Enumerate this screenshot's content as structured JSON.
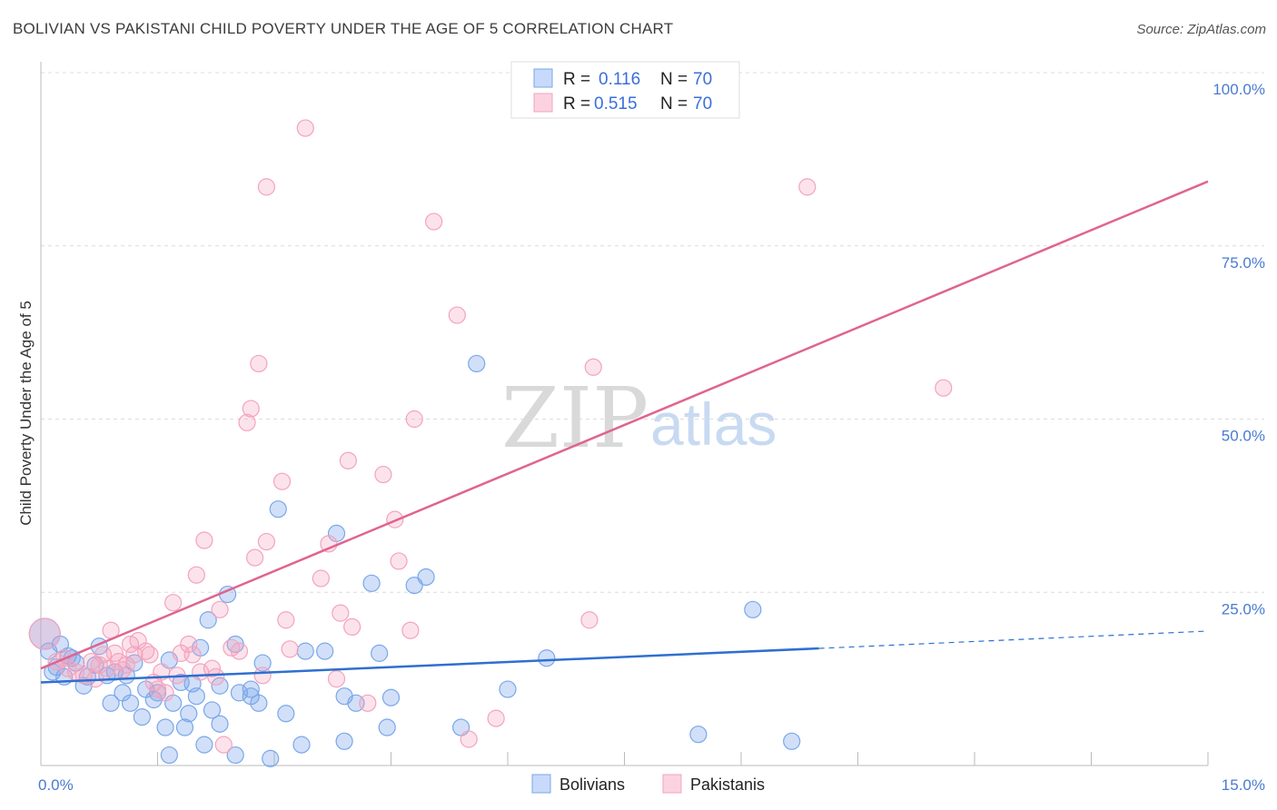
{
  "header": {
    "title": "BOLIVIAN VS PAKISTANI CHILD POVERTY UNDER THE AGE OF 5 CORRELATION CHART",
    "source": "Source: ZipAtlas.com"
  },
  "watermark": {
    "zip": "ZIP",
    "atlas": "atlas"
  },
  "legend": {
    "r_label": "R =",
    "n_label": "N =",
    "rows": [
      {
        "r": "0.116",
        "n": "70"
      },
      {
        "r": "0.515",
        "n": "70"
      }
    ]
  },
  "bottom_legend": [
    "Bolivians",
    "Pakistanis"
  ],
  "chart_data": {
    "type": "scatter",
    "title": "BOLIVIAN VS PAKISTANI CHILD POVERTY UNDER THE AGE OF 5 CORRELATION CHART",
    "xlabel": "",
    "ylabel": "Child Poverty Under the Age of 5",
    "xlim": [
      0,
      15
    ],
    "ylim": [
      0,
      100
    ],
    "x_tick_labels": [
      "0.0%",
      "15.0%"
    ],
    "y_tick_labels": [
      "25.0%",
      "50.0%",
      "75.0%",
      "100.0%"
    ],
    "y_ticks": [
      25,
      50,
      75,
      100
    ],
    "grid": true,
    "legend_position": "top-center",
    "colors": {
      "bolivians": "#7aa7ea",
      "pakistanis": "#f4a3bd",
      "blue_line": "#2f6fd0",
      "pink_line": "#e0648f"
    },
    "series": [
      {
        "name": "Bolivians",
        "r": 0.116,
        "n": 70,
        "trend": {
          "x": [
            0,
            10,
            15
          ],
          "y": [
            12.0,
            16.9,
            19.4
          ],
          "solid_until": 10
        },
        "points": [
          [
            0.1,
            16.5
          ],
          [
            0.15,
            13.5
          ],
          [
            0.2,
            14.2
          ],
          [
            0.25,
            17.5
          ],
          [
            0.3,
            12.8
          ],
          [
            0.35,
            15.8
          ],
          [
            0.45,
            14.8
          ],
          [
            0.55,
            11.5
          ],
          [
            0.6,
            12.8
          ],
          [
            0.75,
            17.2
          ],
          [
            0.85,
            13.0
          ],
          [
            0.9,
            9.0
          ],
          [
            0.95,
            13.5
          ],
          [
            1.05,
            10.5
          ],
          [
            1.1,
            13.0
          ],
          [
            1.15,
            9.0
          ],
          [
            1.2,
            14.8
          ],
          [
            1.3,
            7.0
          ],
          [
            1.35,
            11.0
          ],
          [
            1.45,
            9.5
          ],
          [
            1.5,
            10.5
          ],
          [
            1.6,
            5.5
          ],
          [
            1.65,
            15.2
          ],
          [
            1.7,
            9.0
          ],
          [
            1.65,
            1.5
          ],
          [
            1.8,
            12.0
          ],
          [
            1.85,
            5.5
          ],
          [
            1.9,
            7.5
          ],
          [
            1.95,
            11.8
          ],
          [
            2.0,
            10.0
          ],
          [
            2.05,
            17.0
          ],
          [
            2.1,
            3.0
          ],
          [
            2.15,
            21.0
          ],
          [
            2.2,
            8.0
          ],
          [
            2.3,
            11.5
          ],
          [
            2.3,
            6.0
          ],
          [
            2.4,
            24.7
          ],
          [
            2.5,
            17.5
          ],
          [
            2.5,
            1.5
          ],
          [
            2.55,
            10.5
          ],
          [
            2.7,
            11.0
          ],
          [
            2.7,
            10.0
          ],
          [
            2.8,
            9.0
          ],
          [
            2.85,
            14.8
          ],
          [
            2.95,
            1.0
          ],
          [
            3.05,
            37.0
          ],
          [
            3.15,
            7.5
          ],
          [
            3.35,
            3.0
          ],
          [
            3.4,
            16.5
          ],
          [
            3.65,
            16.5
          ],
          [
            3.8,
            33.5
          ],
          [
            3.9,
            10.0
          ],
          [
            3.9,
            3.5
          ],
          [
            4.05,
            9.0
          ],
          [
            4.25,
            26.3
          ],
          [
            4.35,
            16.2
          ],
          [
            4.45,
            5.5
          ],
          [
            4.5,
            9.8
          ],
          [
            4.8,
            26.0
          ],
          [
            4.95,
            27.2
          ],
          [
            5.4,
            5.5
          ],
          [
            5.6,
            58.0
          ],
          [
            6.0,
            11.0
          ],
          [
            6.5,
            15.5
          ],
          [
            8.45,
            4.5
          ],
          [
            9.15,
            22.5
          ],
          [
            9.65,
            3.5
          ],
          [
            0.05,
            19.0
          ],
          [
            0.4,
            15.5
          ],
          [
            0.7,
            14.5
          ]
        ]
      },
      {
        "name": "Pakistanis",
        "r": 0.515,
        "n": 70,
        "trend": {
          "x": [
            0,
            15
          ],
          "y": [
            14.0,
            84.3
          ]
        },
        "points": [
          [
            0.05,
            19.0
          ],
          [
            0.2,
            15.0
          ],
          [
            0.3,
            15.5
          ],
          [
            0.35,
            14.0
          ],
          [
            0.45,
            13.5
          ],
          [
            0.55,
            13.0
          ],
          [
            0.65,
            15.0
          ],
          [
            0.7,
            12.5
          ],
          [
            0.75,
            14.5
          ],
          [
            0.8,
            16.0
          ],
          [
            0.85,
            14.0
          ],
          [
            0.9,
            19.5
          ],
          [
            0.95,
            16.2
          ],
          [
            1.0,
            15.0
          ],
          [
            1.05,
            13.8
          ],
          [
            1.1,
            14.5
          ],
          [
            1.15,
            17.5
          ],
          [
            1.2,
            16.0
          ],
          [
            1.25,
            18.0
          ],
          [
            1.35,
            16.5
          ],
          [
            1.4,
            16.0
          ],
          [
            1.45,
            12.0
          ],
          [
            1.5,
            11.0
          ],
          [
            1.55,
            13.5
          ],
          [
            1.6,
            10.5
          ],
          [
            1.7,
            23.5
          ],
          [
            1.75,
            13.0
          ],
          [
            1.8,
            16.2
          ],
          [
            1.9,
            17.5
          ],
          [
            1.95,
            16.0
          ],
          [
            2.0,
            27.5
          ],
          [
            2.05,
            13.5
          ],
          [
            2.1,
            32.5
          ],
          [
            2.2,
            14.0
          ],
          [
            2.25,
            12.8
          ],
          [
            2.3,
            22.5
          ],
          [
            2.35,
            3.0
          ],
          [
            2.45,
            17.0
          ],
          [
            2.55,
            16.5
          ],
          [
            2.65,
            49.5
          ],
          [
            2.7,
            51.5
          ],
          [
            2.75,
            30.0
          ],
          [
            2.8,
            58.0
          ],
          [
            2.85,
            13.0
          ],
          [
            2.9,
            83.5
          ],
          [
            2.9,
            32.3
          ],
          [
            3.1,
            41.0
          ],
          [
            3.15,
            21.0
          ],
          [
            3.2,
            16.8
          ],
          [
            3.4,
            92.0
          ],
          [
            3.6,
            27.0
          ],
          [
            3.7,
            32.0
          ],
          [
            3.8,
            12.5
          ],
          [
            3.85,
            22.0
          ],
          [
            3.95,
            44.0
          ],
          [
            4.0,
            20.0
          ],
          [
            4.2,
            9.0
          ],
          [
            4.4,
            42.0
          ],
          [
            4.55,
            35.5
          ],
          [
            4.6,
            29.5
          ],
          [
            4.75,
            19.5
          ],
          [
            4.8,
            50.0
          ],
          [
            5.05,
            78.5
          ],
          [
            5.35,
            65.0
          ],
          [
            5.5,
            3.8
          ],
          [
            5.85,
            6.8
          ],
          [
            7.05,
            21.0
          ],
          [
            7.1,
            57.5
          ],
          [
            9.85,
            83.5
          ],
          [
            11.6,
            54.5
          ]
        ]
      }
    ]
  }
}
